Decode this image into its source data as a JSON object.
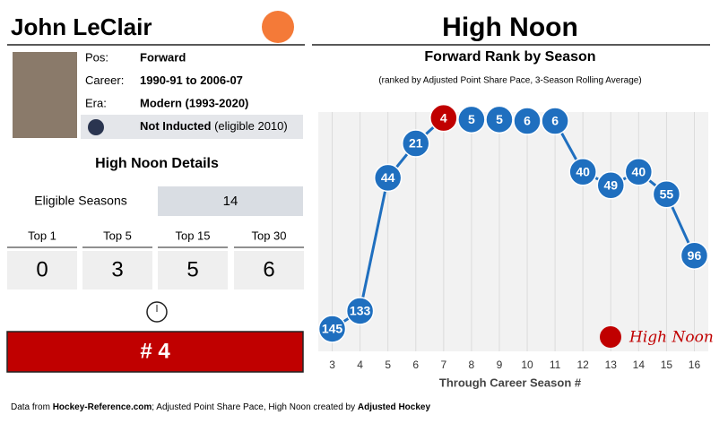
{
  "player": {
    "name": "John LeClair",
    "rows": [
      {
        "label": "Pos:",
        "value": "Forward"
      },
      {
        "label": "Career:",
        "value": "1990-91 to 2006-07"
      },
      {
        "label": "Era:",
        "value": "Modern (1993-2020)"
      }
    ],
    "hof_status": "Not Inducted",
    "hof_note": "(eligible 2010)"
  },
  "details": {
    "title": "High Noon Details",
    "eligible_label": "Eligible Seasons",
    "eligible_value": 14,
    "tops": [
      {
        "label": "Top 1",
        "value": 0
      },
      {
        "label": "Top 5",
        "value": 3
      },
      {
        "label": "Top 15",
        "value": 5
      },
      {
        "label": "Top 30",
        "value": 6
      }
    ],
    "high_noon_label": "# 4"
  },
  "header": {
    "title": "High Noon"
  },
  "footer": {
    "parts": [
      "Data from ",
      "Hockey-Reference.com",
      "; Adjusted Point Share Pace, High Noon created by ",
      "Adjusted Hockey"
    ]
  },
  "chart_data": {
    "type": "line",
    "title": "Forward Rank by Season",
    "subtitle": "(ranked by Adjusted Point Share Pace, 3-Season Rolling Average)",
    "x_label": "Through Career Season #",
    "x": [
      3,
      4,
      5,
      6,
      7,
      8,
      9,
      10,
      11,
      12,
      13,
      14,
      15,
      16
    ],
    "series": [
      {
        "name": "High Noon",
        "color": "#1f6fbf",
        "highlight_color": "#c00000",
        "highlight_index": 4,
        "values": [
          145,
          133,
          44,
          21,
          4,
          5,
          5,
          6,
          6,
          40,
          49,
          40,
          55,
          96
        ]
      }
    ],
    "xlim": [
      2.5,
      16.5
    ],
    "ylim": [
      160,
      0
    ],
    "grid": true
  }
}
